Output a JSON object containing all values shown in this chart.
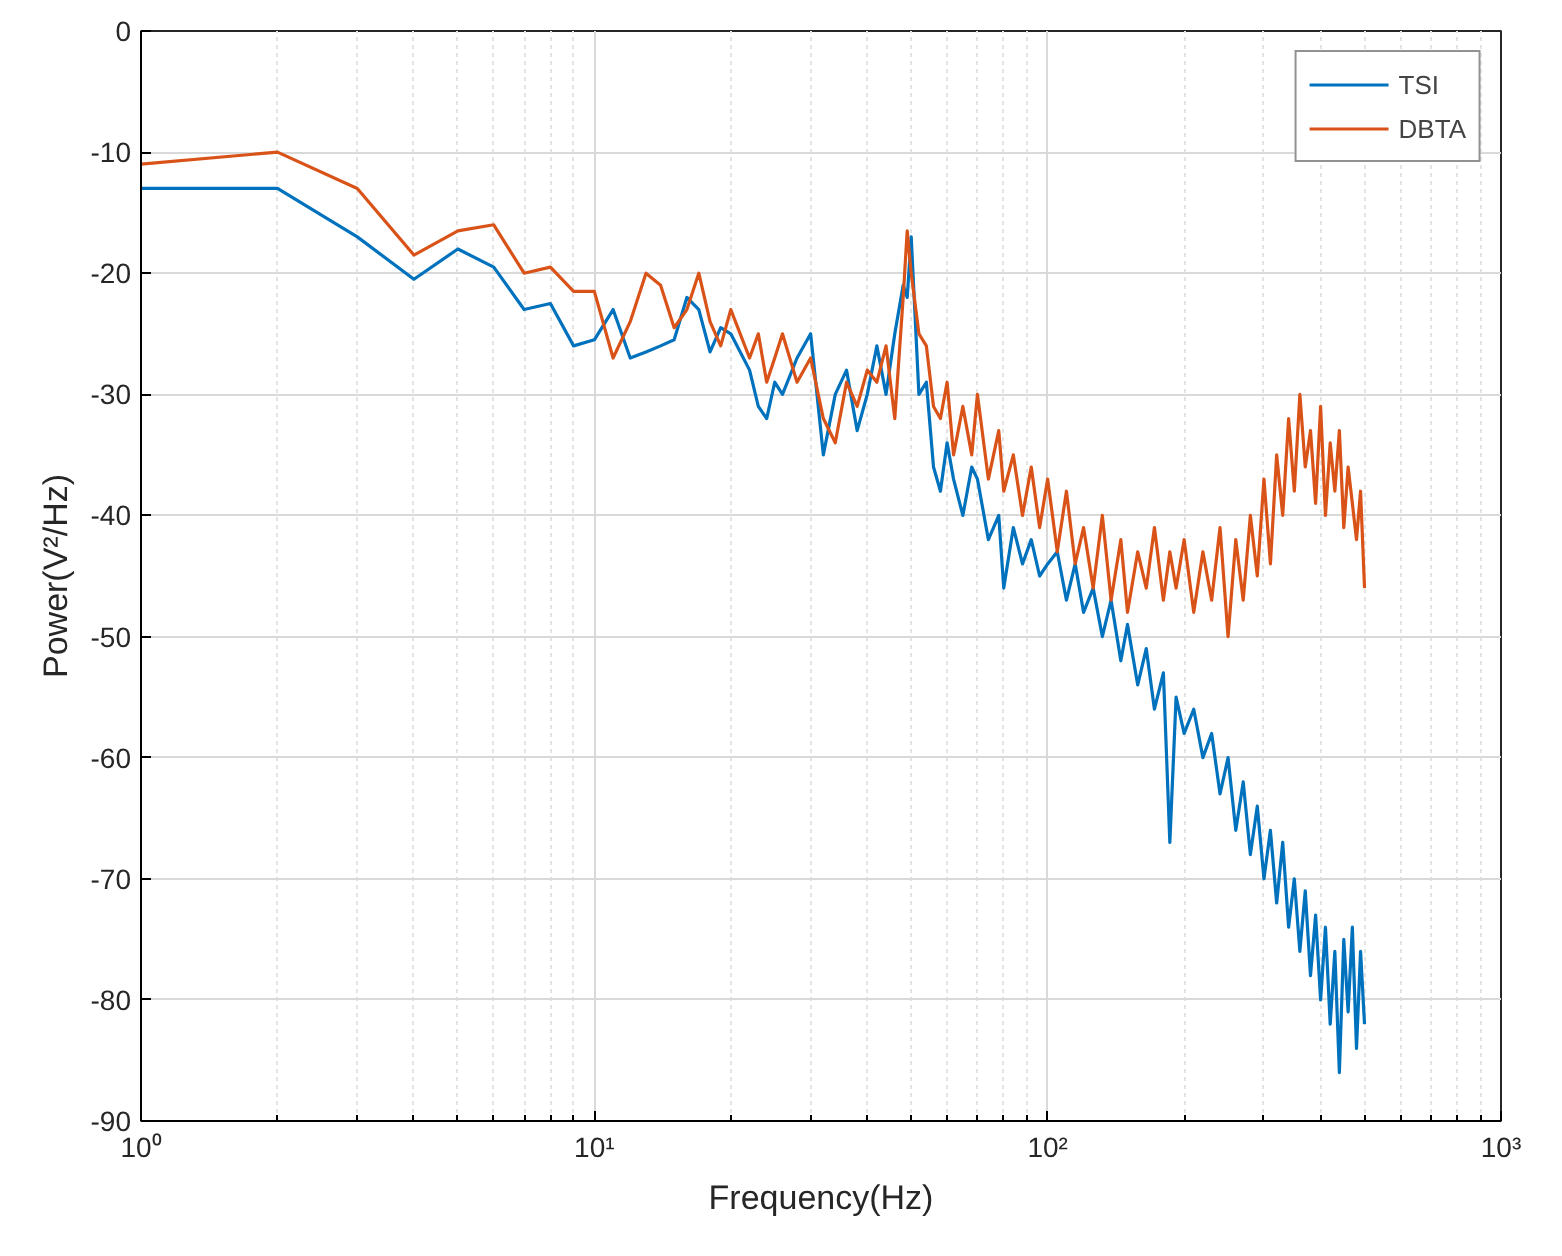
{
  "chart_data": {
    "type": "line",
    "xlabel": "Frequency(Hz)",
    "ylabel": "Power(V²/Hz)",
    "log": "x",
    "grid": true,
    "legend": "top right",
    "xlim": [
      1,
      1000
    ],
    "ylim": [
      -90,
      0
    ],
    "xticks": [
      {
        "value": 1,
        "label": "10⁰"
      },
      {
        "value": 10,
        "label": "10¹"
      },
      {
        "value": 100,
        "label": "10²"
      },
      {
        "value": 1000,
        "label": "10³"
      }
    ],
    "yticks": [
      -90,
      -80,
      -70,
      -60,
      -50,
      -40,
      -30,
      -20,
      -10,
      0
    ],
    "x": [
      1,
      2,
      3,
      4,
      5,
      6,
      7,
      8,
      9,
      10,
      11,
      12,
      13,
      14,
      15,
      16,
      17,
      18,
      19,
      20,
      22,
      23,
      24,
      25,
      26,
      28,
      30,
      32,
      34,
      36,
      38,
      40,
      42,
      44,
      46,
      48,
      49,
      50,
      52,
      54,
      56,
      58,
      60,
      62,
      65,
      68,
      70,
      74,
      78,
      80,
      84,
      88,
      92,
      96,
      100,
      105,
      110,
      115,
      120,
      126,
      132,
      138,
      145,
      150,
      158,
      165,
      172,
      180,
      186,
      192,
      200,
      210,
      220,
      230,
      240,
      250,
      260,
      270,
      280,
      290,
      300,
      310,
      320,
      330,
      340,
      350,
      360,
      370,
      380,
      390,
      400,
      410,
      420,
      430,
      440,
      450,
      460,
      470,
      480,
      490,
      500
    ],
    "series": [
      {
        "name": "TSI",
        "color": "#0072bd",
        "values": [
          -13,
          -13,
          -17,
          -20.5,
          -18,
          -19.5,
          -23,
          -22.5,
          -26,
          -25.5,
          -23,
          -27,
          -26.5,
          -26,
          -25.5,
          -22,
          -23,
          -26.5,
          -24.5,
          -25,
          -28,
          -31,
          -32,
          -29,
          -30,
          -27,
          -25,
          -35,
          -30,
          -28,
          -33,
          -30,
          -26,
          -30,
          -25,
          -21,
          -22,
          -17,
          -30,
          -29,
          -36,
          -38,
          -34,
          -37,
          -40,
          -36,
          -37,
          -42,
          -40,
          -46,
          -41,
          -44,
          -42,
          -45,
          -44,
          -43,
          -47,
          -44,
          -48,
          -46,
          -50,
          -47,
          -52,
          -49,
          -54,
          -51,
          -56,
          -53,
          -67,
          -55,
          -58,
          -56,
          -60,
          -58,
          -63,
          -60,
          -66,
          -62,
          -68,
          -64,
          -70,
          -66,
          -72,
          -67,
          -74,
          -70,
          -76,
          -71,
          -78,
          -73,
          -80,
          -74,
          -82,
          -76,
          -86,
          -75,
          -81,
          -74,
          -84,
          -76,
          -82
        ]
      },
      {
        "name": "DBTA",
        "color": "#d95319",
        "values": [
          -11,
          -10,
          -13,
          -18.5,
          -16.5,
          -16,
          -20,
          -19.5,
          -21.5,
          -21.5,
          -27,
          -24,
          -20,
          -21,
          -24.5,
          -23,
          -20,
          -24,
          -26,
          -23,
          -27,
          -25,
          -29,
          -27,
          -25,
          -29,
          -27,
          -32,
          -34,
          -29,
          -31,
          -28,
          -29,
          -26,
          -32,
          -22,
          -16.5,
          -20,
          -25,
          -26,
          -31,
          -32,
          -29,
          -35,
          -31,
          -35,
          -30,
          -37,
          -33,
          -38,
          -35,
          -40,
          -36,
          -41,
          -37,
          -43,
          -38,
          -44,
          -41,
          -46,
          -40,
          -47,
          -42,
          -48,
          -43,
          -46,
          -41,
          -47,
          -43,
          -46,
          -42,
          -48,
          -43,
          -47,
          -41,
          -50,
          -42,
          -47,
          -40,
          -45,
          -37,
          -44,
          -35,
          -40,
          -32,
          -38,
          -30,
          -36,
          -33,
          -39,
          -31,
          -40,
          -34,
          -38,
          -33,
          -41,
          -36,
          -39,
          -42,
          -38,
          -46
        ]
      }
    ]
  }
}
